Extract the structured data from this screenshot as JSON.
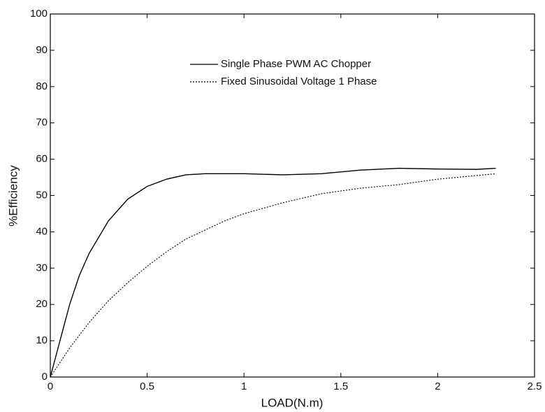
{
  "chart_data": {
    "type": "line",
    "x_label": "LOAD(N.m)",
    "y_label": "%Efficiency",
    "x": [
      0,
      0.05,
      0.1,
      0.15,
      0.2,
      0.3,
      0.4,
      0.5,
      0.6,
      0.7,
      0.8,
      0.9,
      1.0,
      1.2,
      1.4,
      1.6,
      1.8,
      2.0,
      2.2,
      2.3
    ],
    "series": [
      {
        "name": "Single Phase PWM AC Chopper",
        "color": "#000000",
        "dash": "solid",
        "values": [
          0,
          10,
          20,
          28,
          34,
          43,
          49,
          52.5,
          54.5,
          55.7,
          56,
          56,
          56,
          55.7,
          56,
          57,
          57.5,
          57.3,
          57.2,
          57.5
        ]
      },
      {
        "name": "Fixed Sinusoidal Voltage 1 Phase",
        "color": "#000000",
        "dash": "dotted",
        "values": [
          0,
          4,
          8,
          11.5,
          15,
          21,
          26,
          30.5,
          34.5,
          38,
          40.5,
          43,
          45,
          48,
          50.5,
          52,
          53,
          54.5,
          55.5,
          56
        ]
      }
    ],
    "xlim": [
      0,
      2.5
    ],
    "xticks": [
      0,
      0.5,
      1,
      1.5,
      2,
      2.5
    ],
    "ylim": [
      0,
      100
    ],
    "yticks": [
      0,
      10,
      20,
      30,
      40,
      50,
      60,
      70,
      80,
      90,
      100
    ],
    "grid": false
  }
}
